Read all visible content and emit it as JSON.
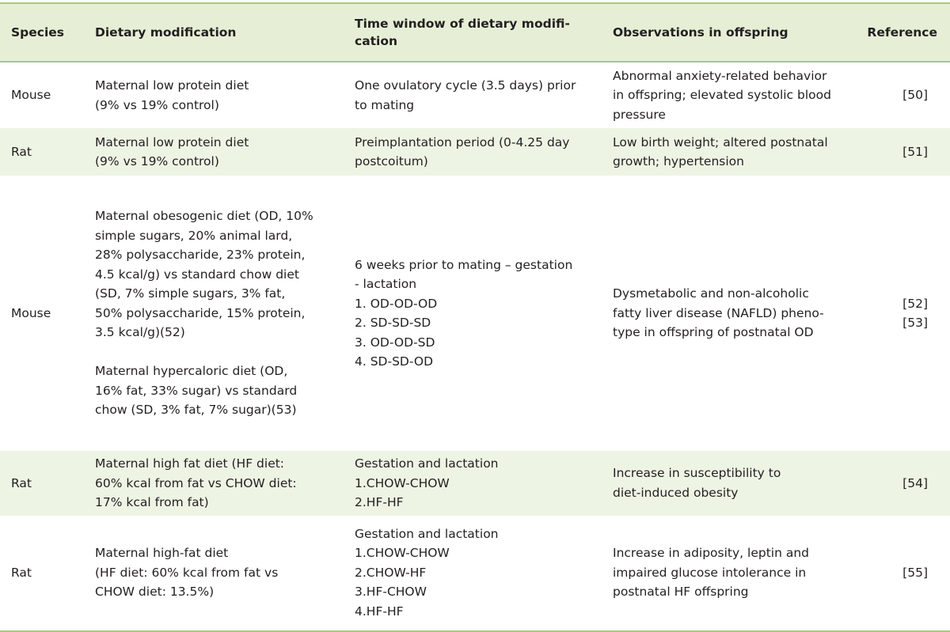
{
  "headers": [
    "Species",
    "Dietary modification",
    "Time window of dietary modifi-\ncation",
    "Observations in offspring",
    "Reference"
  ],
  "rows": [
    {
      "species": "Mouse",
      "diet": "Maternal low protein diet\n(9% vs 19% control)",
      "time": "One ovulatory cycle (3.5 days) prior\nto mating",
      "obs": "Abnormal anxiety-related behavior\nin offspring; elevated systolic blood\npressure",
      "ref": "[50]"
    },
    {
      "species": "Rat",
      "diet": "Maternal low protein diet\n(9% vs 19% control)",
      "time": "Preimplantation period (0-4.25 day\npostcoitum)",
      "obs": "Low birth weight; altered postnatal\ngrowth; hypertension",
      "ref": "[51]"
    },
    {
      "species": "Mouse",
      "diet": "Maternal obesogenic diet (OD, 10%\nsimple sugars, 20% animal lard,\n28% polysaccharide, 23% protein,\n4.5 kcal/g) vs standard chow diet\n(SD, 7% simple sugars, 3% fat,\n50% polysaccharide, 15% protein,\n3.5 kcal/g)(52)\n\nMaternal hypercaloric diet (OD,\n16% fat, 33% sugar) vs standard\nchow (SD, 3% fat, 7% sugar)(53)",
      "time": "6 weeks prior to mating – gestation\n- lactation\n1. OD-OD-OD\n2. SD-SD-SD\n3. OD-OD-SD\n4. SD-SD-OD",
      "obs": "Dysmetabolic and non-alcoholic\nfatty liver disease (NAFLD) pheno-\ntype in offspring of postnatal OD",
      "ref": "[52]\n[53]"
    },
    {
      "species": "Rat",
      "diet": "Maternal high fat diet (HF diet:\n60% kcal from fat vs CHOW diet:\n17% kcal from fat)",
      "time": "Gestation and lactation\n1.CHOW-CHOW\n2.HF-HF",
      "obs": "Increase in susceptibility to\ndiet-induced obesity",
      "ref": "[54]"
    },
    {
      "species": "Rat",
      "diet": "Maternal high-fat diet\n(HF diet: 60% kcal from fat vs\nCHOW diet: 13.5%)",
      "time": "Gestation and lactation\n1.CHOW-CHOW\n2.CHOW-HF\n3.HF-CHOW\n4.HF-HF",
      "obs": "Increase in adiposity, leptin and\nimpaired glucose intolerance in\npostnatal HF offspring",
      "ref": "[55]"
    }
  ]
}
